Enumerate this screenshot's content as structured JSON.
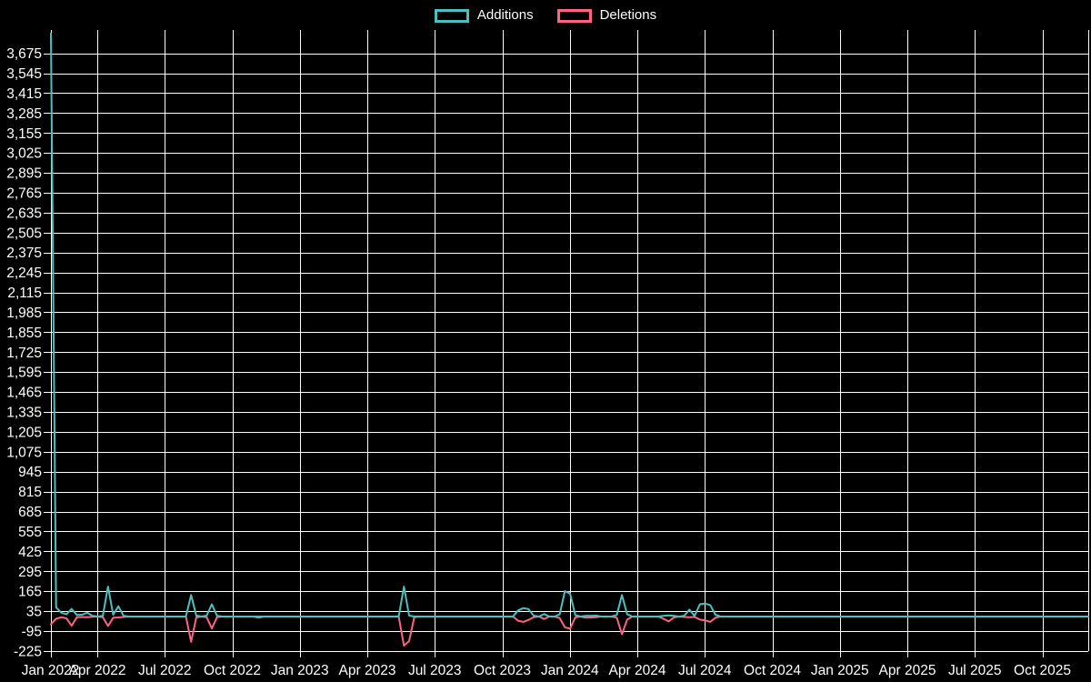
{
  "chart_data": {
    "type": "line",
    "title": "",
    "legend_position": "top",
    "grid": true,
    "background_color": "#000000",
    "gridline_color": "#ffffff",
    "text_color": "#ffffff",
    "x_axis": {
      "tick_labels": [
        "Jan 2022",
        "Apr 2022",
        "Jul 2022",
        "Oct 2022",
        "Jan 2023",
        "Apr 2023",
        "Jul 2023",
        "Oct 2023",
        "Jan 2024",
        "Apr 2024",
        "Jul 2024",
        "Oct 2024",
        "Jan 2025",
        "Apr 2025",
        "Jul 2025",
        "Oct 2025"
      ],
      "unit": "week",
      "weeks_total": 201
    },
    "y_axis": {
      "min": -225,
      "max": 3675,
      "step": 130,
      "tick_labels": [
        "-225",
        "-95",
        "35",
        "165",
        "295",
        "425",
        "555",
        "685",
        "815",
        "945",
        "1,075",
        "1,205",
        "1,335",
        "1,465",
        "1,595",
        "1,725",
        "1,855",
        "1,985",
        "2,115",
        "2,245",
        "2,375",
        "2,505",
        "2,635",
        "2,765",
        "2,895",
        "3,025",
        "3,155",
        "3,285",
        "3,415",
        "3,545",
        "3,675"
      ]
    },
    "series": [
      {
        "name": "Additions",
        "color": "#4bc0c0",
        "default_value": 0,
        "points_sparse": [
          [
            0,
            3805
          ],
          [
            1,
            60
          ],
          [
            2,
            25
          ],
          [
            3,
            15
          ],
          [
            4,
            50
          ],
          [
            5,
            10
          ],
          [
            6,
            12
          ],
          [
            7,
            25
          ],
          [
            8,
            5
          ],
          [
            10,
            5
          ],
          [
            11,
            195
          ],
          [
            12,
            12
          ],
          [
            13,
            67
          ],
          [
            14,
            5
          ],
          [
            27,
            140
          ],
          [
            28,
            6
          ],
          [
            30,
            6
          ],
          [
            31,
            80
          ],
          [
            32,
            4
          ],
          [
            67,
            2
          ],
          [
            68,
            195
          ],
          [
            69,
            6
          ],
          [
            90,
            40
          ],
          [
            91,
            55
          ],
          [
            92,
            48
          ],
          [
            93,
            6
          ],
          [
            95,
            16
          ],
          [
            98,
            15
          ],
          [
            99,
            165
          ],
          [
            100,
            150
          ],
          [
            101,
            10
          ],
          [
            103,
            5
          ],
          [
            104,
            4
          ],
          [
            105,
            6
          ],
          [
            109,
            10
          ],
          [
            110,
            140
          ],
          [
            111,
            15
          ],
          [
            118,
            5
          ],
          [
            119,
            8
          ],
          [
            120,
            4
          ],
          [
            122,
            4
          ],
          [
            123,
            45
          ],
          [
            124,
            4
          ],
          [
            125,
            80
          ],
          [
            126,
            85
          ],
          [
            127,
            75
          ],
          [
            128,
            12
          ]
        ]
      },
      {
        "name": "Deletions",
        "color": "#ff6384",
        "default_value": 0,
        "points_sparse": [
          [
            0,
            -50
          ],
          [
            1,
            -15
          ],
          [
            2,
            -5
          ],
          [
            3,
            -12
          ],
          [
            4,
            -60
          ],
          [
            5,
            -5
          ],
          [
            6,
            -3
          ],
          [
            7,
            -4
          ],
          [
            8,
            -2
          ],
          [
            10,
            -5
          ],
          [
            11,
            -62
          ],
          [
            12,
            -8
          ],
          [
            13,
            -6
          ],
          [
            14,
            -3
          ],
          [
            27,
            -165
          ],
          [
            28,
            -6
          ],
          [
            30,
            -4
          ],
          [
            31,
            -78
          ],
          [
            32,
            -4
          ],
          [
            40,
            -8
          ],
          [
            67,
            -2
          ],
          [
            68,
            -190
          ],
          [
            69,
            -160
          ],
          [
            70,
            -4
          ],
          [
            90,
            -28
          ],
          [
            91,
            -35
          ],
          [
            92,
            -22
          ],
          [
            93,
            -4
          ],
          [
            95,
            -16
          ],
          [
            98,
            -10
          ],
          [
            99,
            -70
          ],
          [
            100,
            -80
          ],
          [
            101,
            -6
          ],
          [
            103,
            -8
          ],
          [
            104,
            -6
          ],
          [
            105,
            -4
          ],
          [
            109,
            -8
          ],
          [
            110,
            -115
          ],
          [
            111,
            -20
          ],
          [
            118,
            -15
          ],
          [
            119,
            -32
          ],
          [
            120,
            -6
          ],
          [
            122,
            -3
          ],
          [
            123,
            -4
          ],
          [
            124,
            -3
          ],
          [
            125,
            -20
          ],
          [
            126,
            -25
          ],
          [
            127,
            -35
          ],
          [
            128,
            -8
          ]
        ]
      }
    ]
  }
}
